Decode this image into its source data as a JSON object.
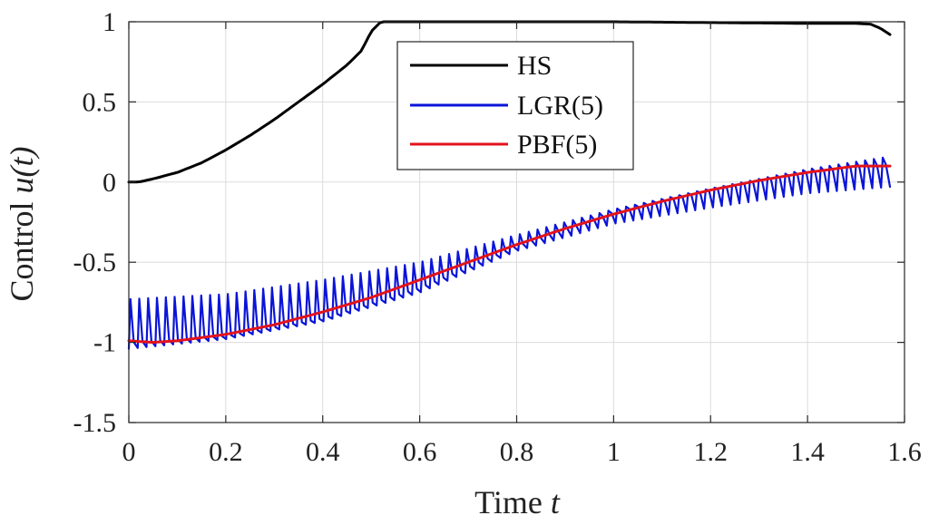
{
  "chart_data": {
    "type": "line",
    "title": "",
    "xlabel_prefix": "Time ",
    "xlabel_var": "t",
    "ylabel_prefix": "Control ",
    "ylabel_var": "u(t)",
    "xlim": [
      0,
      1.6
    ],
    "ylim": [
      -1.5,
      1
    ],
    "xticks": [
      0,
      0.2,
      0.4,
      0.6,
      0.8,
      1,
      1.2,
      1.4,
      1.6
    ],
    "yticks": [
      -1.5,
      -1,
      -0.5,
      0,
      0.5,
      1
    ],
    "xtick_labels": [
      "0",
      "0.2",
      "0.4",
      "0.6",
      "0.8",
      "1",
      "1.2",
      "1.4",
      "1.6"
    ],
    "ytick_labels": [
      "-1.5",
      "-1",
      "-0.5",
      "0",
      "0.5",
      "1"
    ],
    "grid": true,
    "legend_position": "top-center",
    "series": [
      {
        "name": "HS",
        "color": "#000000",
        "x": [
          0,
          0.02,
          0.05,
          0.1,
          0.15,
          0.2,
          0.25,
          0.3,
          0.35,
          0.4,
          0.45,
          0.48,
          0.5,
          0.52,
          0.6,
          0.8,
          1.0,
          1.2,
          1.4,
          1.5,
          1.53,
          1.55,
          1.57
        ],
        "y": [
          0,
          0.0,
          0.02,
          0.06,
          0.12,
          0.2,
          0.29,
          0.39,
          0.5,
          0.61,
          0.73,
          0.82,
          0.94,
          1.0,
          1.0,
          1.0,
          1.0,
          0.995,
          0.99,
          0.99,
          0.985,
          0.96,
          0.92
        ]
      },
      {
        "name": "LGR(5)",
        "color": "#0a14d8",
        "oscillating": true,
        "cycles": 86,
        "x": [
          0,
          0.2,
          0.4,
          0.6,
          0.8,
          1.0,
          1.2,
          1.4,
          1.57
        ],
        "y": [
          -1.0,
          -0.96,
          -0.85,
          -0.66,
          -0.4,
          -0.19,
          -0.05,
          0.06,
          0.11
        ],
        "upper": [
          -0.73,
          -0.7,
          -0.61,
          -0.5,
          -0.33,
          -0.17,
          -0.04,
          0.08,
          0.16
        ],
        "lower": [
          -1.04,
          -0.98,
          -0.87,
          -0.69,
          -0.43,
          -0.26,
          -0.16,
          -0.07,
          -0.03
        ]
      },
      {
        "name": "PBF(5)",
        "color": "#e3131b",
        "x": [
          0,
          0.05,
          0.1,
          0.2,
          0.3,
          0.4,
          0.5,
          0.6,
          0.7,
          0.8,
          0.9,
          1.0,
          1.1,
          1.2,
          1.3,
          1.4,
          1.5,
          1.57
        ],
        "y": [
          -0.99,
          -1.0,
          -0.99,
          -0.95,
          -0.89,
          -0.81,
          -0.72,
          -0.61,
          -0.5,
          -0.39,
          -0.29,
          -0.2,
          -0.12,
          -0.05,
          0.01,
          0.06,
          0.1,
          0.1
        ]
      }
    ]
  }
}
